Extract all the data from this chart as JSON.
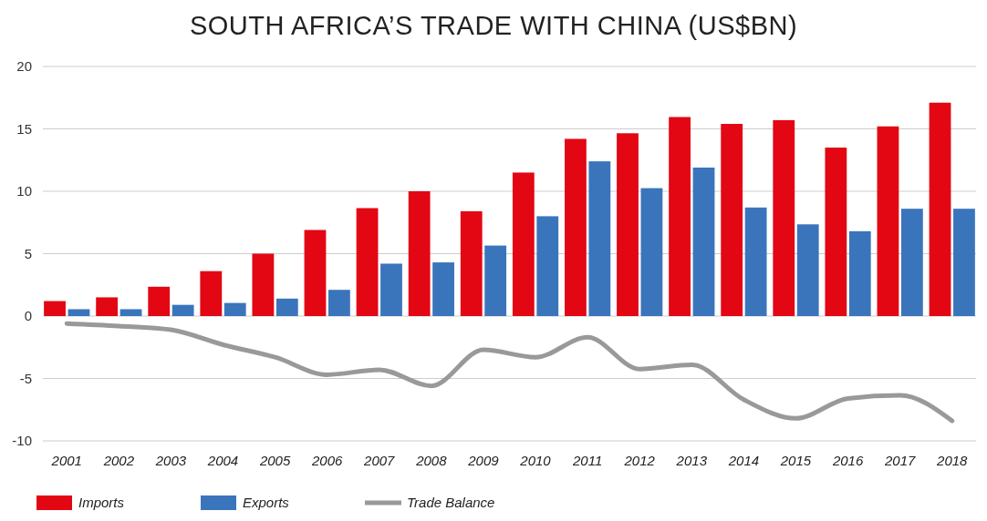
{
  "chart_data": {
    "type": "bar",
    "title": "SOUTH AFRICA’S TRADE WITH CHINA (US$BN)",
    "categories": [
      "2001",
      "2002",
      "2003",
      "2004",
      "2005",
      "2006",
      "2007",
      "2008",
      "2009",
      "2010",
      "2011",
      "2012",
      "2013",
      "2014",
      "2015",
      "2016",
      "2017",
      "2018"
    ],
    "series": [
      {
        "name": "Imports",
        "color": "#e30613",
        "values": [
          1.2,
          1.5,
          2.35,
          3.6,
          5.0,
          6.9,
          8.65,
          10.0,
          8.4,
          11.5,
          14.2,
          14.65,
          15.95,
          15.4,
          15.7,
          13.5,
          15.2,
          17.1
        ]
      },
      {
        "name": "Exports",
        "color": "#3a75bc",
        "values": [
          0.55,
          0.55,
          0.9,
          1.05,
          1.4,
          2.1,
          4.2,
          4.3,
          5.65,
          8.0,
          12.4,
          10.25,
          11.9,
          8.7,
          7.35,
          6.8,
          8.6,
          8.6
        ]
      },
      {
        "name": "Trade Balance",
        "type": "line",
        "color": "#999999",
        "values": [
          -0.6,
          -0.8,
          -1.1,
          -2.3,
          -3.3,
          -4.7,
          -4.3,
          -5.6,
          -2.7,
          -3.3,
          -1.7,
          -4.25,
          -3.9,
          -6.7,
          -8.2,
          -6.6,
          -6.35,
          -8.4
        ]
      }
    ],
    "ylim": [
      -10,
      20
    ],
    "yticks": [
      -10,
      -5,
      0,
      5,
      10,
      15,
      20
    ],
    "grid": "y",
    "legend": "bottom left",
    "line_style": "solid",
    "marker": "none"
  }
}
